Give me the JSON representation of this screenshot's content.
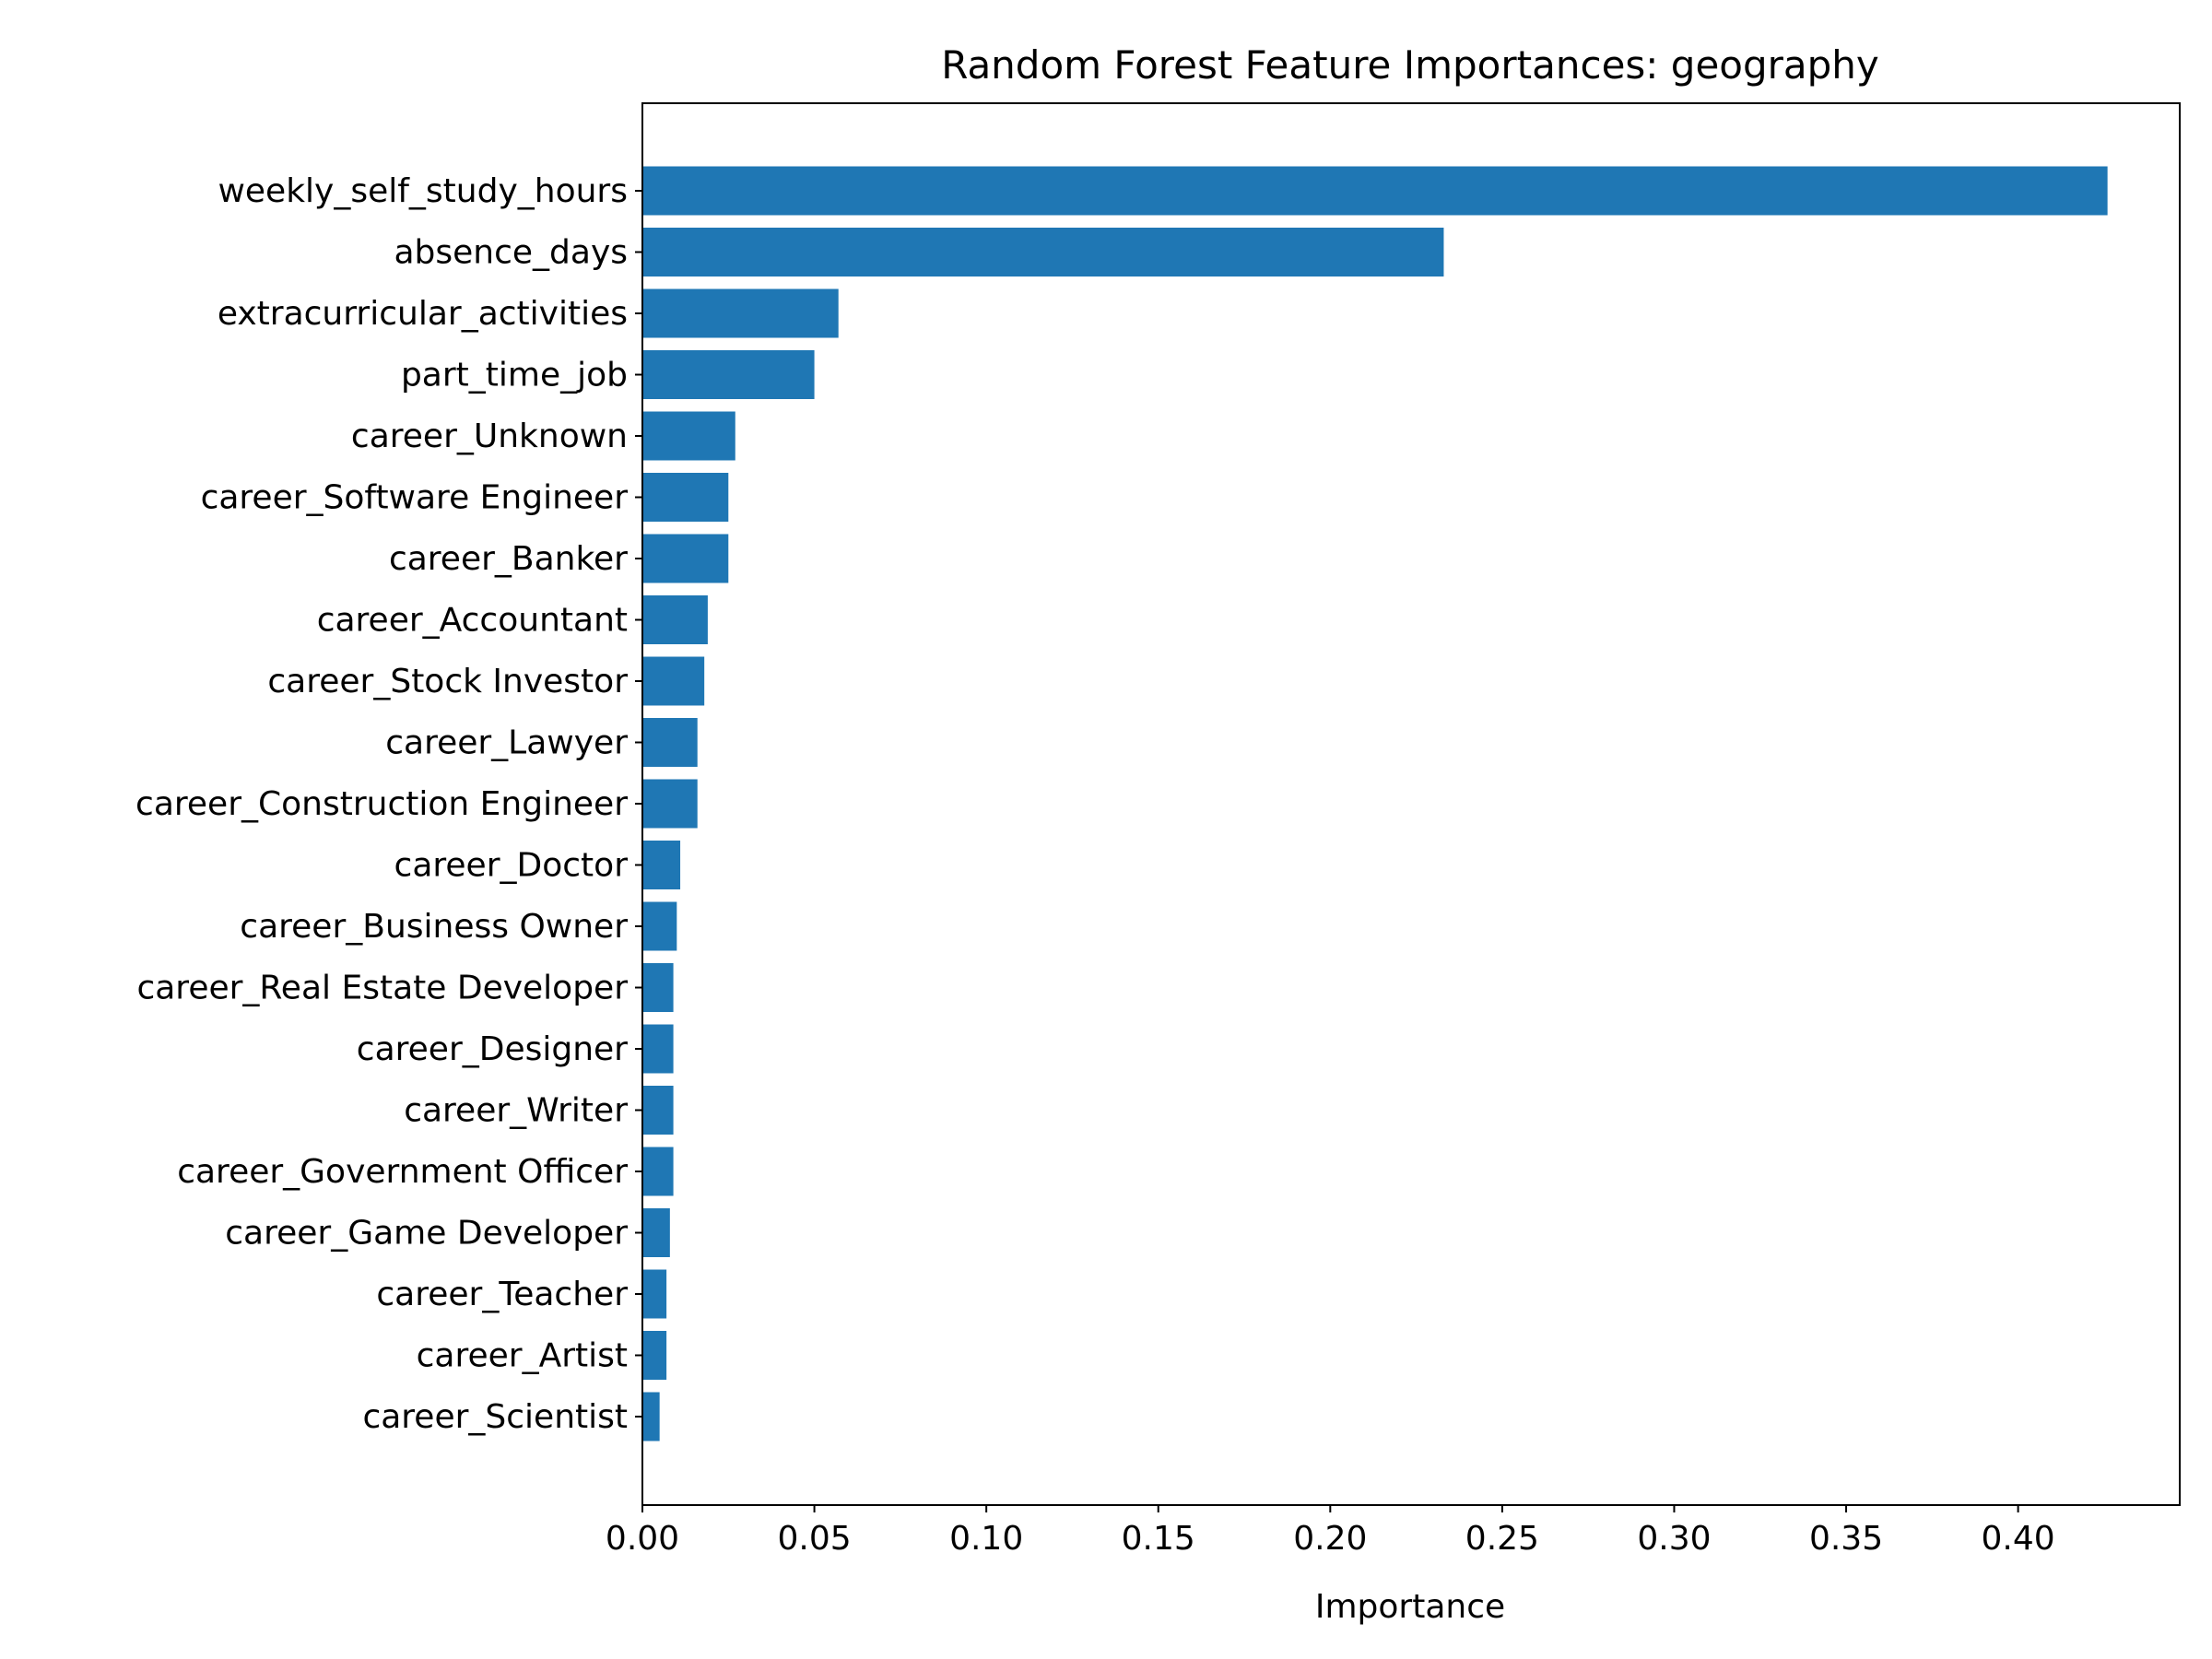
{
  "chart_data": {
    "type": "bar",
    "orientation": "horizontal",
    "title": "Random Forest Feature Importances: geography",
    "xlabel": "Importance",
    "ylabel": "",
    "xlim": [
      0,
      0.447
    ],
    "xticks": [
      0.0,
      0.05,
      0.1,
      0.15,
      0.2,
      0.25,
      0.3,
      0.35,
      0.4
    ],
    "xtick_labels": [
      "0.00",
      "0.05",
      "0.10",
      "0.15",
      "0.20",
      "0.25",
      "0.30",
      "0.35",
      "0.40"
    ],
    "grid": false,
    "bar_color": "#1f77b4",
    "categories": [
      "weekly_self_study_hours",
      "absence_days",
      "extracurricular_activities",
      "part_time_job",
      "career_Unknown",
      "career_Software Engineer",
      "career_Banker",
      "career_Accountant",
      "career_Stock Investor",
      "career_Lawyer",
      "career_Construction Engineer",
      "career_Doctor",
      "career_Business Owner",
      "career_Real Estate Developer",
      "career_Designer",
      "career_Writer",
      "career_Government Officer",
      "career_Game Developer",
      "career_Teacher",
      "career_Artist",
      "career_Scientist"
    ],
    "values": [
      0.426,
      0.233,
      0.057,
      0.05,
      0.027,
      0.025,
      0.025,
      0.019,
      0.018,
      0.016,
      0.016,
      0.011,
      0.01,
      0.009,
      0.009,
      0.009,
      0.009,
      0.008,
      0.007,
      0.007,
      0.005
    ]
  }
}
